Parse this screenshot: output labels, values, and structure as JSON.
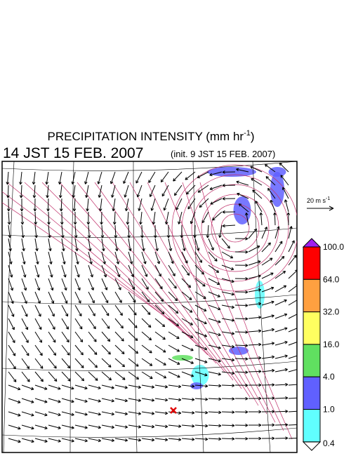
{
  "title": {
    "text": "PRECIPITATION INTENSITY (mm hr",
    "sup": "-1",
    "close": ")"
  },
  "subtitle": {
    "time": "14 JST 15 FEB. 2007",
    "init": "(init. 9 JST 15 FEB. 2007)"
  },
  "reference_vector": {
    "label": "20 m s",
    "sup": "-1"
  },
  "colorbar": {
    "labels": [
      "100.0",
      "64.0",
      "32.0",
      "16.0",
      "4.0",
      "1.0",
      "0.4"
    ]
  }
}
